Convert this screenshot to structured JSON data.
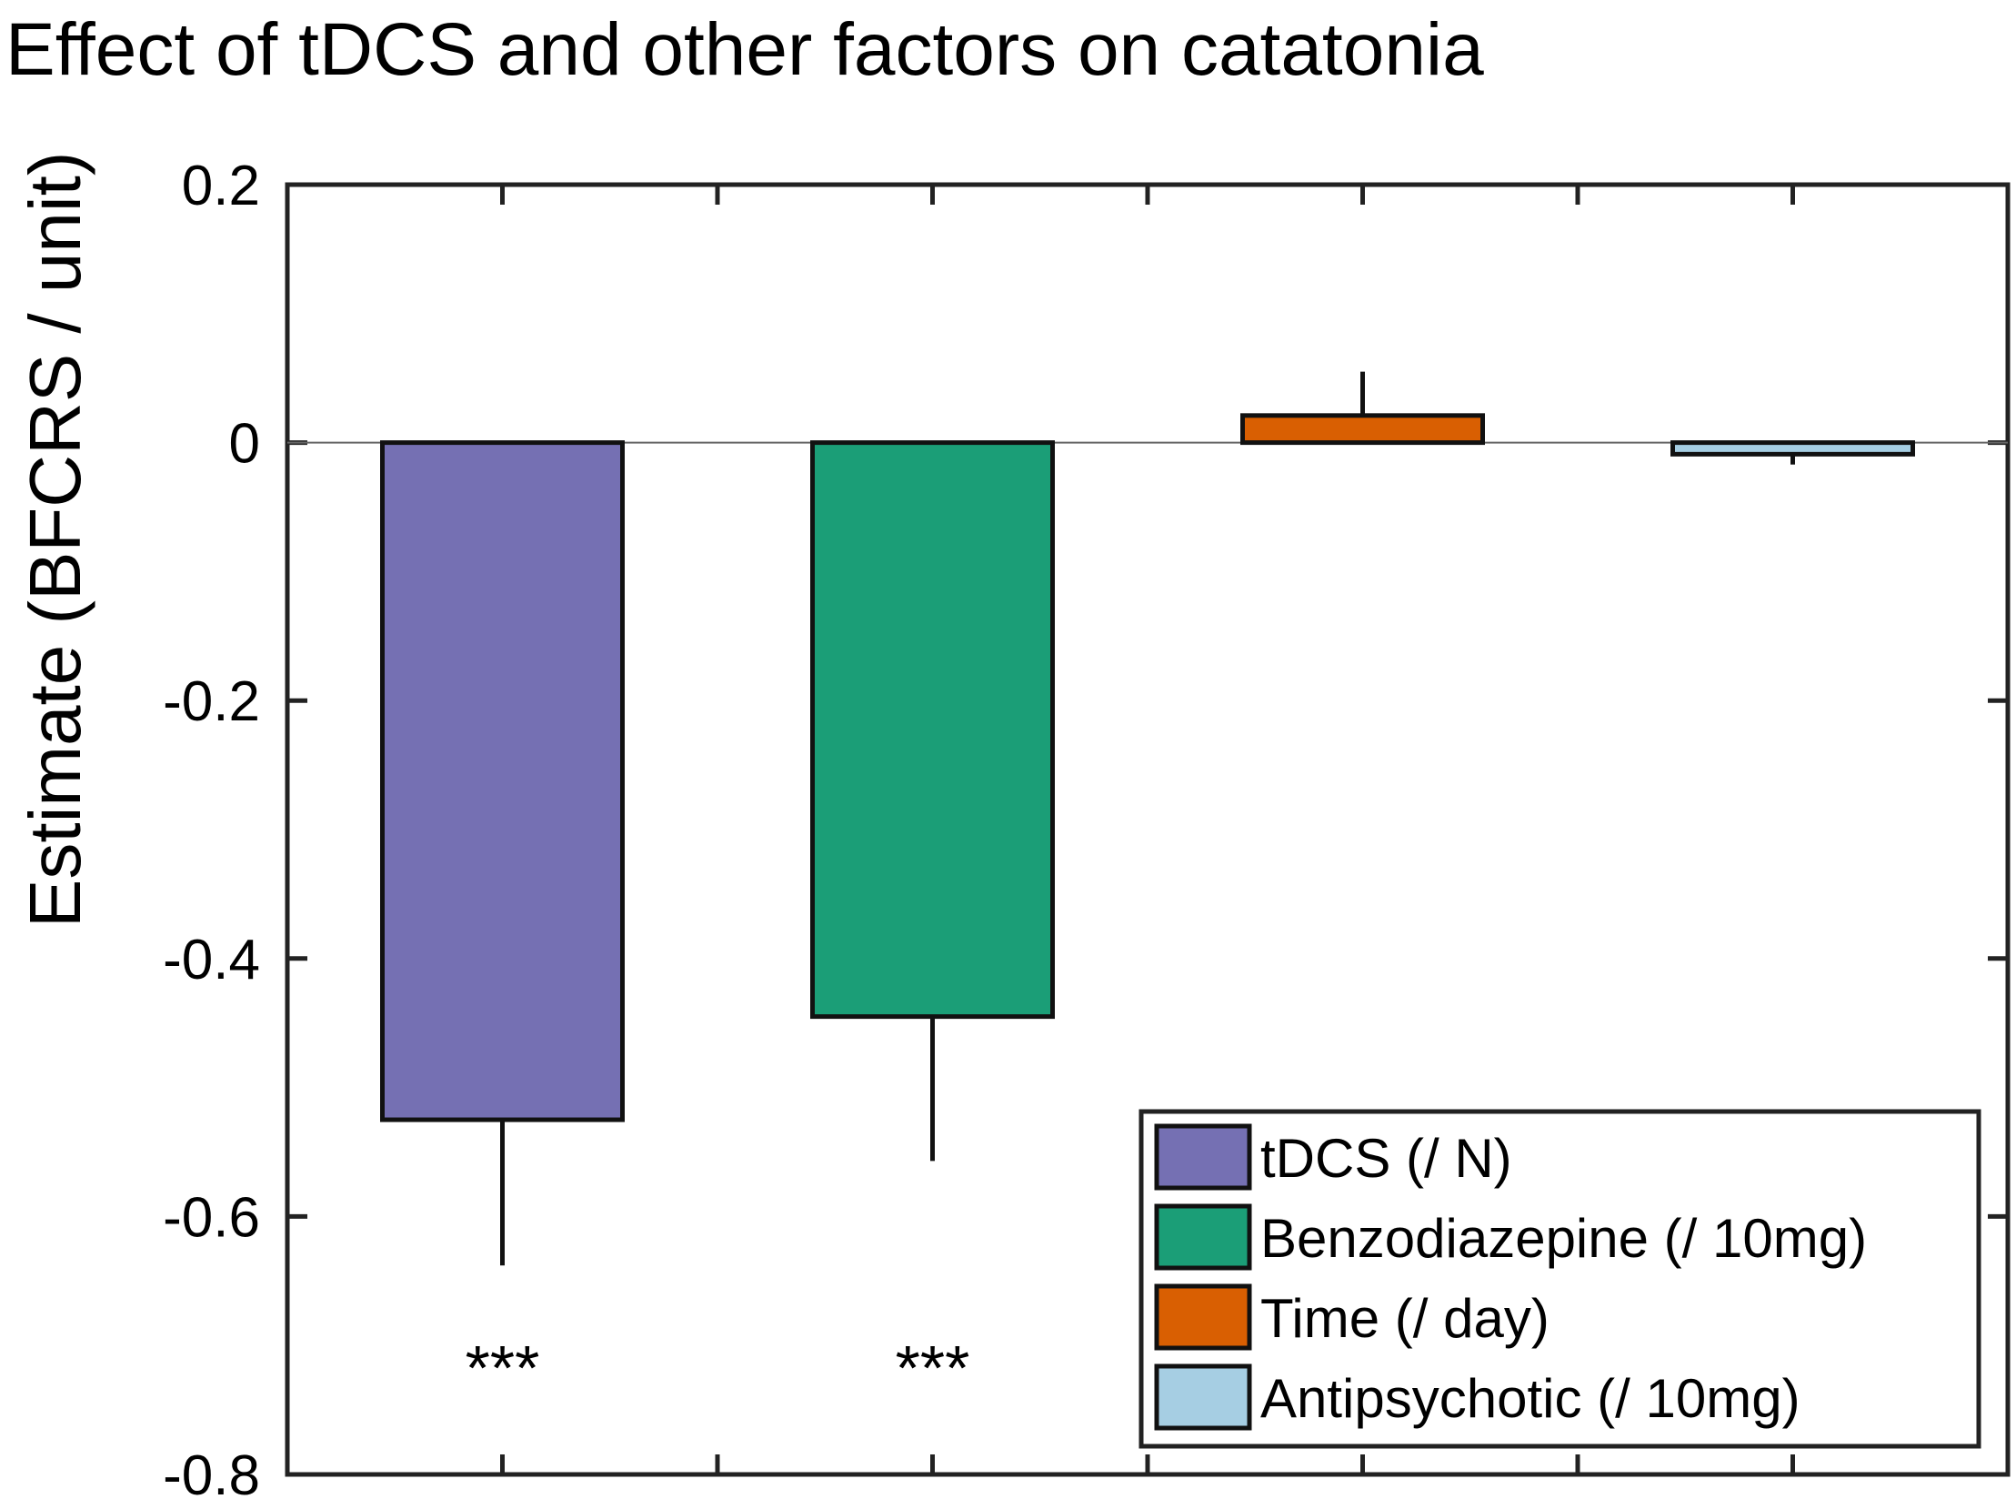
{
  "chart_data": {
    "type": "bar",
    "title": "Effect of tDCS and other factors on catatonia",
    "xlabel": "",
    "ylabel": "Estimate (BFCRS / unit)",
    "ylim": [
      -0.8,
      0.2
    ],
    "yticks": [
      0.2,
      0,
      -0.2,
      -0.4,
      -0.6,
      -0.8
    ],
    "ytick_labels": [
      "0.2",
      "0",
      "-0.2",
      "-0.4",
      "-0.6",
      "-0.8"
    ],
    "grid": false,
    "legend_position": "bottom-right",
    "categories": [
      "tDCS (/ N)",
      "Benzodiazepine (/ 10mg)",
      "Time (/ day)",
      "Antipsychotic (/ 10mg)"
    ],
    "values": [
      -0.525,
      -0.445,
      0.021,
      -0.009
    ],
    "errors": [
      0.113,
      0.112,
      0.034,
      0.008
    ],
    "colors": [
      "#7570b3",
      "#1b9e77",
      "#d95f02",
      "#a6cee3"
    ],
    "significance": [
      "***",
      "***",
      "",
      ""
    ]
  }
}
